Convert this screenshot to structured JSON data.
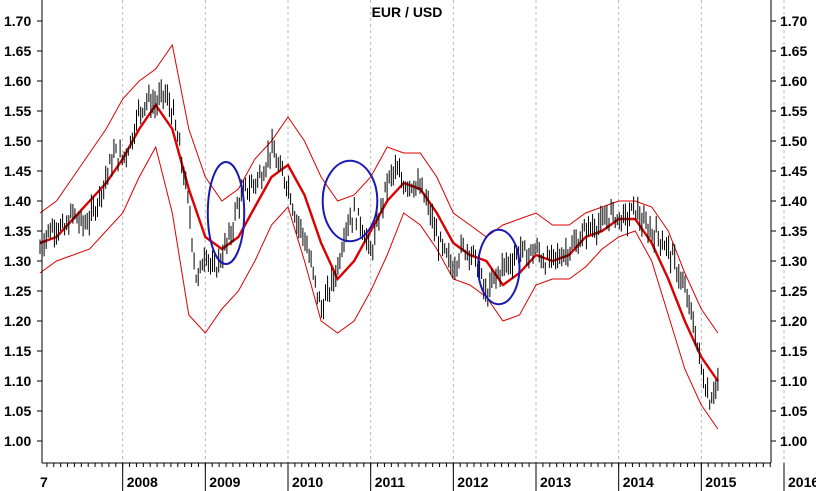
{
  "chart_data": {
    "type": "line",
    "title": "EUR / USD",
    "xlabel": "",
    "ylabel": "",
    "ylim": [
      0.97,
      1.72
    ],
    "x_range": [
      "2007.0",
      "2016.2"
    ],
    "y_ticks": [
      "1.70",
      "1.65",
      "1.60",
      "1.55",
      "1.50",
      "1.45",
      "1.40",
      "1.35",
      "1.30",
      "1.25",
      "1.20",
      "1.15",
      "1.10",
      "1.05",
      "1.00"
    ],
    "x_tick_labels": [
      "7",
      "2008",
      "2009",
      "2010",
      "2011",
      "2012",
      "2013",
      "2014",
      "2015",
      "2016"
    ],
    "grid": "vertical dashed at year boundaries",
    "colors": {
      "price": "#000000",
      "moving_average": "#dd0000",
      "bands": "#dd0000",
      "circles": "#1a1ab3"
    },
    "series": [
      {
        "style": "price-bars",
        "x": [
          2007.0,
          2007.1,
          2007.2,
          2007.3,
          2007.4,
          2007.5,
          2007.6,
          2007.7,
          2007.8,
          2007.9,
          2008.0,
          2008.1,
          2008.2,
          2008.3,
          2008.4,
          2008.5,
          2008.6,
          2008.7,
          2008.8,
          2008.9,
          2009.0,
          2009.1,
          2009.2,
          2009.3,
          2009.4,
          2009.5,
          2009.6,
          2009.7,
          2009.8,
          2009.9,
          2010.0,
          2010.1,
          2010.2,
          2010.3,
          2010.4,
          2010.5,
          2010.6,
          2010.7,
          2010.8,
          2010.9,
          2011.0,
          2011.1,
          2011.2,
          2011.3,
          2011.4,
          2011.5,
          2011.6,
          2011.7,
          2011.8,
          2011.9,
          2012.0,
          2012.1,
          2012.2,
          2012.3,
          2012.4,
          2012.5,
          2012.6,
          2012.7,
          2012.8,
          2012.9,
          2013.0,
          2013.1,
          2013.2,
          2013.3,
          2013.4,
          2013.5,
          2013.6,
          2013.7,
          2013.8,
          2013.9,
          2014.0,
          2014.1,
          2014.2,
          2014.3,
          2014.4,
          2014.5,
          2014.6,
          2014.7,
          2014.8,
          2014.9,
          2015.0,
          2015.1,
          2015.2
        ],
        "values": [
          1.32,
          1.35,
          1.36,
          1.35,
          1.38,
          1.36,
          1.37,
          1.4,
          1.44,
          1.48,
          1.47,
          1.5,
          1.55,
          1.57,
          1.56,
          1.58,
          1.55,
          1.48,
          1.39,
          1.26,
          1.32,
          1.28,
          1.31,
          1.34,
          1.4,
          1.42,
          1.43,
          1.45,
          1.49,
          1.45,
          1.43,
          1.37,
          1.34,
          1.28,
          1.22,
          1.25,
          1.29,
          1.36,
          1.38,
          1.36,
          1.31,
          1.37,
          1.43,
          1.45,
          1.43,
          1.43,
          1.42,
          1.39,
          1.34,
          1.31,
          1.29,
          1.32,
          1.32,
          1.29,
          1.24,
          1.27,
          1.29,
          1.3,
          1.32,
          1.31,
          1.32,
          1.3,
          1.3,
          1.31,
          1.32,
          1.33,
          1.35,
          1.36,
          1.36,
          1.38,
          1.37,
          1.37,
          1.39,
          1.36,
          1.35,
          1.34,
          1.32,
          1.29,
          1.25,
          1.2,
          1.12,
          1.07,
          1.1
        ]
      },
      {
        "style": "moving-average",
        "x": [
          2007.0,
          2007.2,
          2007.4,
          2007.6,
          2007.8,
          2008.0,
          2008.2,
          2008.4,
          2008.6,
          2008.8,
          2009.0,
          2009.2,
          2009.4,
          2009.6,
          2009.8,
          2010.0,
          2010.2,
          2010.4,
          2010.6,
          2010.8,
          2011.0,
          2011.2,
          2011.4,
          2011.6,
          2011.8,
          2012.0,
          2012.2,
          2012.4,
          2012.6,
          2012.8,
          2013.0,
          2013.2,
          2013.4,
          2013.6,
          2013.8,
          2014.0,
          2014.2,
          2014.4,
          2014.6,
          2014.8,
          2015.0,
          2015.2
        ],
        "values": [
          1.33,
          1.34,
          1.37,
          1.4,
          1.43,
          1.47,
          1.52,
          1.56,
          1.52,
          1.42,
          1.34,
          1.32,
          1.34,
          1.39,
          1.44,
          1.46,
          1.41,
          1.33,
          1.27,
          1.3,
          1.35,
          1.4,
          1.43,
          1.42,
          1.38,
          1.33,
          1.31,
          1.3,
          1.26,
          1.28,
          1.31,
          1.3,
          1.31,
          1.34,
          1.35,
          1.37,
          1.37,
          1.33,
          1.27,
          1.2,
          1.14,
          1.1
        ]
      },
      {
        "style": "upper-band",
        "x": [
          2007.0,
          2007.2,
          2007.4,
          2007.6,
          2007.8,
          2008.0,
          2008.2,
          2008.4,
          2008.6,
          2008.8,
          2009.0,
          2009.2,
          2009.4,
          2009.6,
          2009.8,
          2010.0,
          2010.2,
          2010.4,
          2010.6,
          2010.8,
          2011.0,
          2011.2,
          2011.4,
          2011.6,
          2011.8,
          2012.0,
          2012.2,
          2012.4,
          2012.6,
          2012.8,
          2013.0,
          2013.2,
          2013.4,
          2013.6,
          2013.8,
          2014.0,
          2014.2,
          2014.4,
          2014.6,
          2014.8,
          2015.0,
          2015.2
        ],
        "values": [
          1.38,
          1.4,
          1.44,
          1.48,
          1.52,
          1.57,
          1.6,
          1.62,
          1.66,
          1.52,
          1.44,
          1.4,
          1.42,
          1.47,
          1.5,
          1.54,
          1.5,
          1.44,
          1.4,
          1.41,
          1.44,
          1.49,
          1.48,
          1.48,
          1.44,
          1.38,
          1.36,
          1.34,
          1.36,
          1.37,
          1.38,
          1.36,
          1.36,
          1.38,
          1.39,
          1.4,
          1.4,
          1.39,
          1.35,
          1.28,
          1.22,
          1.18
        ]
      },
      {
        "style": "lower-band",
        "x": [
          2007.0,
          2007.2,
          2007.4,
          2007.6,
          2007.8,
          2008.0,
          2008.2,
          2008.4,
          2008.6,
          2008.8,
          2009.0,
          2009.2,
          2009.4,
          2009.6,
          2009.8,
          2010.0,
          2010.2,
          2010.4,
          2010.6,
          2010.8,
          2011.0,
          2011.2,
          2011.4,
          2011.6,
          2011.8,
          2012.0,
          2012.2,
          2012.4,
          2012.6,
          2012.8,
          2013.0,
          2013.2,
          2013.4,
          2013.6,
          2013.8,
          2014.0,
          2014.2,
          2014.4,
          2014.6,
          2014.8,
          2015.0,
          2015.2
        ],
        "values": [
          1.28,
          1.3,
          1.31,
          1.32,
          1.35,
          1.38,
          1.44,
          1.49,
          1.38,
          1.21,
          1.18,
          1.22,
          1.25,
          1.3,
          1.36,
          1.39,
          1.3,
          1.2,
          1.18,
          1.2,
          1.25,
          1.31,
          1.38,
          1.36,
          1.32,
          1.27,
          1.26,
          1.24,
          1.2,
          1.21,
          1.26,
          1.27,
          1.27,
          1.29,
          1.32,
          1.34,
          1.35,
          1.3,
          1.21,
          1.12,
          1.06,
          1.02
        ]
      }
    ],
    "annotations": [
      {
        "type": "ellipse",
        "cx": 2009.25,
        "cy": 1.38,
        "rx": 0.22,
        "ry": 0.085
      },
      {
        "type": "ellipse",
        "cx": 2010.75,
        "cy": 1.4,
        "rx": 0.33,
        "ry": 0.067
      },
      {
        "type": "ellipse",
        "cx": 2012.55,
        "cy": 1.29,
        "rx": 0.25,
        "ry": 0.062
      }
    ]
  }
}
